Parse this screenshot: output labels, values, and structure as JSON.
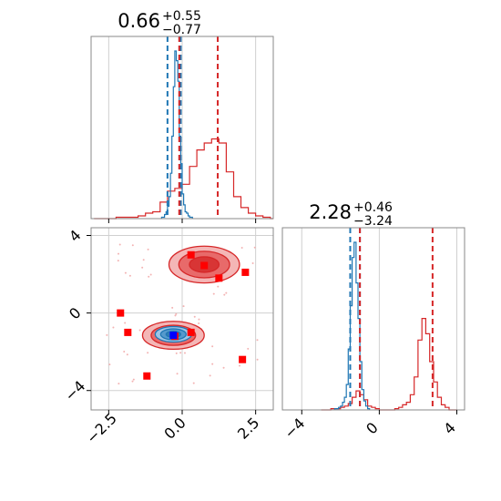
{
  "chart_data": {
    "type": "corner",
    "colors": {
      "blue": "#1f77b4",
      "red": "#d62728",
      "red_fill": "#e04a4a",
      "red_light": "#f3b3b3",
      "grid": "#d0d0d0",
      "axes": "#888888",
      "marker_red": "#ff0000",
      "marker_blue": "#0000ff"
    },
    "grid": true,
    "params": [
      {
        "title_value": "0.66",
        "title_plus": "+0.55",
        "title_minus": "−0.77",
        "range": [
          -3.1,
          3.1
        ]
      },
      {
        "title_value": "2.28",
        "title_plus": "+0.46",
        "title_minus": "−3.24",
        "range": [
          -5.0,
          4.4
        ]
      }
    ],
    "x_ticks": [
      -2.5,
      0.0,
      2.5
    ],
    "x_tick_labels": [
      "−2.5",
      "0.0",
      "2.5"
    ],
    "y_ticks": [
      -4,
      0,
      4
    ],
    "y_tick_labels": [
      "−4",
      "0",
      "4"
    ],
    "hist_1d": [
      {
        "blue_quantiles": [
          -0.5,
          -0.05
        ],
        "red_quantiles": [
          -0.1,
          1.21
        ],
        "blue_series": {
          "bins": [
            -0.7,
            -0.65,
            -0.6,
            -0.55,
            -0.5,
            -0.45,
            -0.4,
            -0.35,
            -0.3,
            -0.25,
            -0.2,
            -0.15,
            -0.1,
            -0.05,
            0.0,
            0.05,
            0.1,
            0.15,
            0.2,
            0.25,
            0.3,
            0.35
          ],
          "counts": [
            1,
            1,
            3,
            5,
            9,
            16,
            33,
            60,
            96,
            122,
            115,
            100,
            60,
            40,
            18,
            10,
            5,
            4,
            2,
            1,
            1
          ]
        },
        "red_series": {
          "bins": [
            -3.0,
            -2.75,
            -2.5,
            -2.25,
            -2.0,
            -1.75,
            -1.5,
            -1.25,
            -1.0,
            -0.75,
            -0.5,
            -0.25,
            0.0,
            0.25,
            0.5,
            0.75,
            1.0,
            1.25,
            1.5,
            1.75,
            2.0,
            2.25,
            2.5,
            2.75,
            3.0,
            3.1
          ],
          "counts": [
            0,
            0,
            0,
            1,
            1,
            1,
            2,
            4,
            5,
            12,
            20,
            22,
            25,
            38,
            50,
            55,
            58,
            55,
            34,
            16,
            8,
            4,
            2,
            1,
            0
          ]
        }
      },
      {
        "blue_quantiles": [
          -1.5,
          -1.0
        ],
        "red_quantiles": [
          -1.0,
          2.75
        ],
        "blue_series": {
          "bins": [
            -2.3,
            -2.2,
            -2.1,
            -2.0,
            -1.9,
            -1.8,
            -1.7,
            -1.6,
            -1.5,
            -1.4,
            -1.3,
            -1.2,
            -1.1,
            -1.0,
            -0.9,
            -0.8,
            -0.7,
            -0.6,
            -0.5
          ],
          "counts": [
            1,
            1,
            2,
            3,
            6,
            10,
            20,
            48,
            82,
            120,
            132,
            100,
            72,
            38,
            16,
            7,
            3,
            1
          ]
        },
        "red_series": {
          "bins": [
            -3.0,
            -2.5,
            -2.0,
            -1.8,
            -1.6,
            -1.4,
            -1.2,
            -1.0,
            -0.8,
            -0.6,
            -0.4,
            -0.2,
            0.0,
            0.2,
            0.4,
            0.6,
            0.8,
            1.0,
            1.2,
            1.4,
            1.6,
            1.8,
            2.0,
            2.2,
            2.4,
            2.6,
            2.8,
            3.0,
            3.2,
            3.4,
            3.6,
            4.0
          ],
          "counts": [
            0,
            1,
            2,
            3,
            5,
            10,
            15,
            12,
            8,
            3,
            2,
            1,
            0,
            0,
            0,
            0,
            1,
            2,
            4,
            6,
            12,
            26,
            55,
            72,
            60,
            38,
            22,
            10,
            4,
            2,
            0
          ]
        }
      }
    ],
    "scatter_2d": {
      "red_squares": [
        {
          "x": 0.3,
          "y": 3.0
        },
        {
          "x": 0.75,
          "y": 2.45
        },
        {
          "x": 1.25,
          "y": 1.8
        },
        {
          "x": 2.15,
          "y": 2.1
        },
        {
          "x": -2.1,
          "y": 0.0
        },
        {
          "x": -1.85,
          "y": -1.0
        },
        {
          "x": 0.3,
          "y": -1.0
        },
        {
          "x": 2.05,
          "y": -2.4
        },
        {
          "x": -1.2,
          "y": -3.25
        },
        {
          "x": -0.25,
          "y": -1.2
        }
      ],
      "blue_square": {
        "x": -0.3,
        "y": -1.15
      },
      "red_upper_blob": {
        "cx": 0.75,
        "cy": 2.5,
        "rx": 1.2,
        "ry": 0.95
      },
      "red_lower_blob": {
        "cx": -0.3,
        "cy": -1.15,
        "rx": 1.05,
        "ry": 0.72
      },
      "blue_blob": {
        "cx": -0.3,
        "cy": -1.1,
        "rx": 0.62,
        "ry": 0.4
      }
    }
  }
}
